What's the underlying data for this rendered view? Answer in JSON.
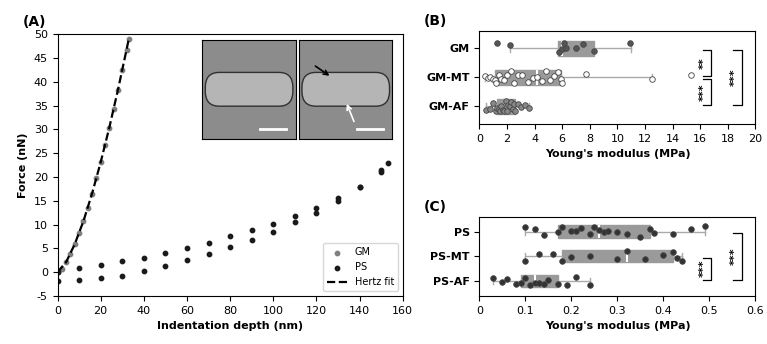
{
  "chart_data": [
    {
      "type": "scatter",
      "title": "(A)",
      "x_label": "Indentation depth (nm)",
      "y_label": "Force (nN)",
      "xlim": [
        0,
        160
      ],
      "xticks": [
        0,
        20,
        40,
        60,
        80,
        100,
        120,
        140,
        160
      ],
      "ylim": [
        -5,
        50
      ],
      "yticks": [
        -5,
        0,
        5,
        10,
        15,
        20,
        25,
        30,
        35,
        40,
        45,
        50
      ],
      "grid": false,
      "legend": "lower right",
      "series": [
        {
          "name": "GM",
          "type": "scatter",
          "color": "#7f7f7f",
          "marker": "o",
          "x": [
            0,
            2,
            4,
            6,
            8,
            10,
            12,
            14,
            16,
            18,
            20,
            22,
            24,
            26,
            28,
            30,
            32,
            33
          ],
          "values": [
            0,
            0.7,
            2.1,
            3.8,
            5.9,
            8.2,
            10.7,
            13.5,
            16.5,
            19.7,
            23.1,
            26.7,
            30.4,
            34.3,
            38.3,
            42.5,
            46.8,
            49
          ]
        },
        {
          "name": "PS",
          "type": "scatter",
          "color": "#1a1a1a",
          "marker": "o",
          "x": [
            0,
            10,
            20,
            30,
            40,
            50,
            60,
            70,
            80,
            90,
            100,
            110,
            120,
            130,
            140,
            150,
            153,
            150,
            140,
            130,
            120,
            110,
            100,
            90,
            80,
            70,
            60,
            50,
            40,
            30,
            20,
            10,
            0
          ],
          "values": [
            0,
            0.8,
            1.5,
            2.3,
            3.0,
            4.0,
            5.0,
            6.2,
            7.5,
            8.8,
            10.2,
            11.8,
            13.5,
            15.5,
            17.8,
            21,
            23,
            21.5,
            18,
            15,
            12.5,
            10.5,
            8.5,
            6.8,
            5.2,
            3.8,
            2.5,
            1.2,
            0.2,
            -0.8,
            -1.3,
            -1.6,
            -1.8
          ]
        },
        {
          "name": "Hertz fit",
          "type": "line",
          "color": "#000000",
          "line_style": "dashed",
          "x": [
            0,
            4,
            8,
            12,
            16,
            20,
            24,
            28,
            32,
            33
          ],
          "values": [
            0,
            2.1,
            5.9,
            10.7,
            16.5,
            23.1,
            30.4,
            38.3,
            46.8,
            49
          ]
        }
      ]
    },
    {
      "type": "box",
      "title": "(B)",
      "x_label": "Young's modulus (MPa)",
      "orientation": "horizontal",
      "color": "#9a9a9a",
      "xlim": [
        0,
        20
      ],
      "xticks": [
        0,
        2,
        4,
        6,
        8,
        10,
        12,
        14,
        16,
        18,
        20
      ],
      "grid": false,
      "categories": [
        "GM",
        "GM-MT",
        "GM-AF"
      ],
      "boxes": [
        {
          "min": 2.2,
          "q1": 5.7,
          "median": 6.0,
          "q3": 8.3,
          "max": 11.0,
          "color": "#555555",
          "points": [
            1.3,
            2.2,
            5.8,
            6.0,
            6.1,
            6.3,
            7.0,
            7.5,
            8.3,
            10.9
          ]
        },
        {
          "min": 0.4,
          "q1": 1.1,
          "median": 4.2,
          "q3": 5.9,
          "max": 12.5,
          "color": "#ffffff",
          "points": [
            0.4,
            0.6,
            0.8,
            1.0,
            1.1,
            1.2,
            1.4,
            1.6,
            1.8,
            2.0,
            2.3,
            2.5,
            2.8,
            3.1,
            3.5,
            3.9,
            4.2,
            4.5,
            4.8,
            5.1,
            5.4,
            5.7,
            5.9,
            6.0,
            7.7,
            12.5,
            15.3
          ]
        },
        {
          "min": 0.5,
          "q1": 1.3,
          "median": 2.0,
          "q3": 2.6,
          "max": 3.6,
          "color": "#888888",
          "points": [
            0.5,
            0.8,
            1.0,
            1.2,
            1.3,
            1.4,
            1.5,
            1.6,
            1.7,
            1.8,
            1.9,
            2.0,
            2.1,
            2.2,
            2.3,
            2.4,
            2.5,
            2.6,
            2.8,
            3.0,
            3.3,
            3.6
          ]
        }
      ],
      "significance": [
        {
          "pair": [
            "GM",
            "GM-MT"
          ],
          "label": "**"
        },
        {
          "pair": [
            "GM-MT",
            "GM-AF"
          ],
          "label": "***"
        },
        {
          "pair": [
            "GM",
            "GM-AF"
          ],
          "label": "***"
        }
      ]
    },
    {
      "type": "box",
      "title": "(C)",
      "x_label": "Young's modulus (MPa)",
      "orientation": "horizontal",
      "color": "#9a9a9a",
      "xlim": [
        0,
        0.6
      ],
      "xticks": [
        0,
        0.1,
        0.2,
        0.3,
        0.4,
        0.5,
        0.6
      ],
      "grid": false,
      "categories": [
        "PS",
        "PS-MT",
        "PS-AF"
      ],
      "boxes": [
        {
          "min": 0.1,
          "q1": 0.17,
          "median": 0.26,
          "q3": 0.37,
          "max": 0.49,
          "color": "#333333",
          "points": [
            0.1,
            0.12,
            0.14,
            0.17,
            0.18,
            0.2,
            0.21,
            0.22,
            0.24,
            0.25,
            0.26,
            0.27,
            0.28,
            0.3,
            0.32,
            0.35,
            0.37,
            0.38,
            0.42,
            0.46,
            0.49
          ]
        },
        {
          "min": 0.1,
          "q1": 0.18,
          "median": 0.32,
          "q3": 0.42,
          "max": 0.44,
          "color": "#333333",
          "points": [
            0.1,
            0.13,
            0.16,
            0.18,
            0.2,
            0.24,
            0.3,
            0.32,
            0.36,
            0.4,
            0.42,
            0.43,
            0.44
          ]
        },
        {
          "min": 0.03,
          "q1": 0.09,
          "median": 0.12,
          "q3": 0.17,
          "max": 0.24,
          "color": "#333333",
          "points": [
            0.03,
            0.05,
            0.06,
            0.08,
            0.09,
            0.1,
            0.11,
            0.12,
            0.13,
            0.14,
            0.15,
            0.17,
            0.19,
            0.21,
            0.24
          ]
        }
      ],
      "significance": [
        {
          "pair": [
            "PS-MT",
            "PS-AF"
          ],
          "label": "***"
        },
        {
          "pair": [
            "PS",
            "PS-AF"
          ],
          "label": "***"
        }
      ]
    }
  ]
}
